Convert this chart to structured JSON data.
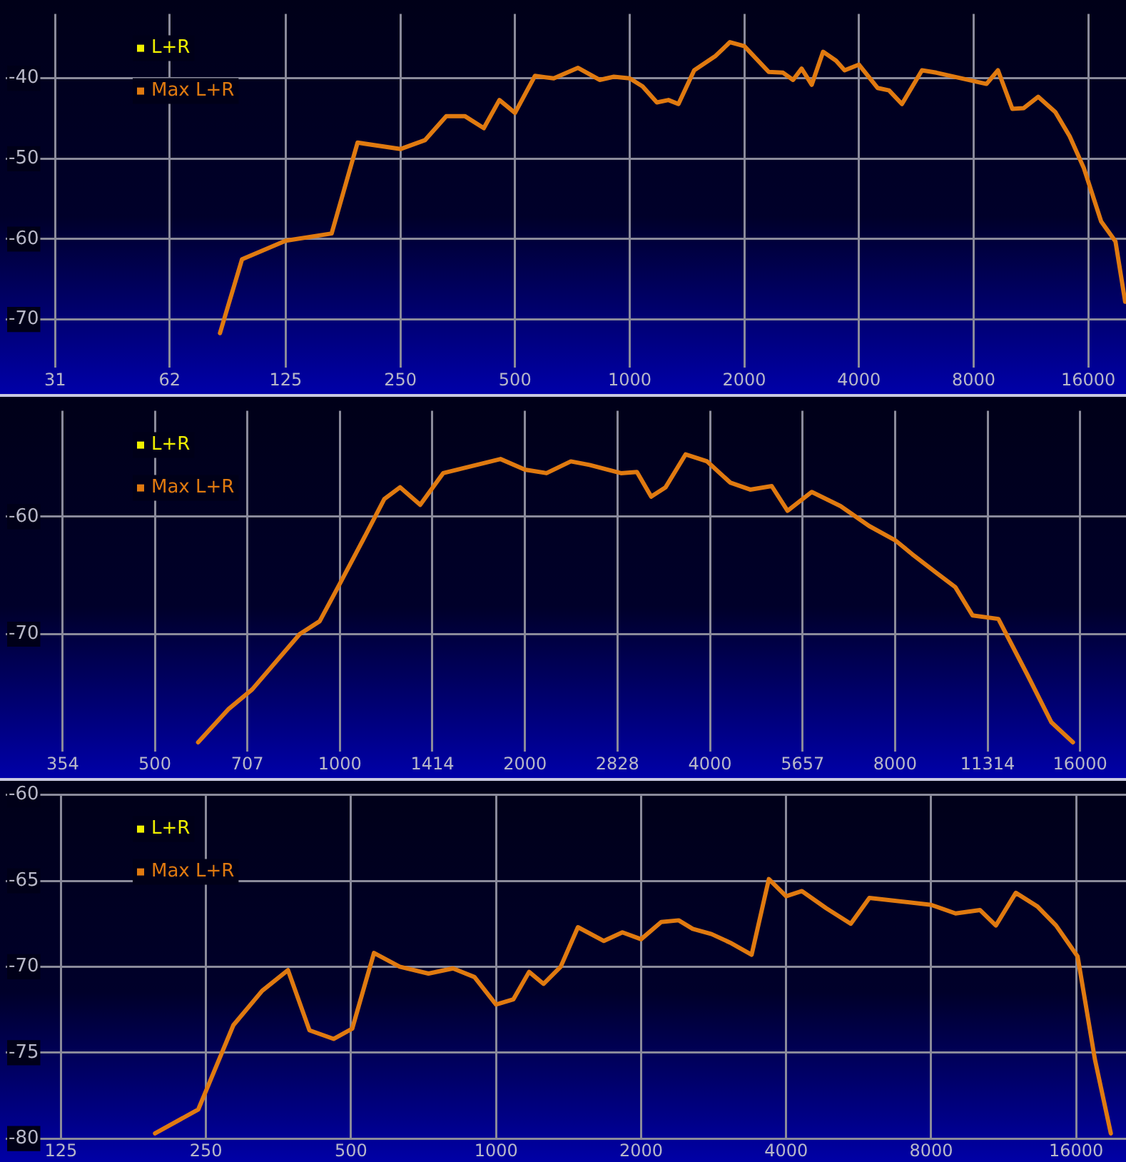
{
  "chart_data": [
    {
      "type": "line",
      "log": "x",
      "grid": true,
      "legend": "top left",
      "marker": "none",
      "line_style": "solid",
      "xlim": [
        23,
        20100
      ],
      "ylim": [
        -76,
        -32
      ],
      "xticks": [
        31,
        62,
        125,
        250,
        500,
        1000,
        2000,
        4000,
        8000,
        16000
      ],
      "yticks": [
        -40,
        -50,
        -60,
        -70
      ],
      "series": [
        {
          "name": "L+R",
          "color": "#f0f000"
        },
        {
          "name": "Max L+R",
          "color": "#e07a10",
          "x": [
            84,
            96,
            125,
            165,
            193,
            250,
            290,
            330,
            369,
            414,
            455,
            500,
            564,
            632,
            732,
            834,
            909,
            1000,
            1081,
            1179,
            1264,
            1343,
            1477,
            1682,
            1834,
            2000,
            2318,
            2527,
            2685,
            2828,
            3006,
            3220,
            3482,
            3668,
            4000,
            4476,
            4797,
            5187,
            5856,
            6386,
            8647,
            9269,
            10109,
            10835,
            11818,
            13110,
            14294,
            15588,
            17296,
            18862,
            20000
          ],
          "values": [
            -71.7,
            -62.5,
            -60.2,
            -59.3,
            -48,
            -48.8,
            -47.7,
            -44.7,
            -44.7,
            -46.2,
            -42.7,
            -44.3,
            -39.7,
            -40,
            -38.7,
            -40.2,
            -39.8,
            -40,
            -41,
            -43,
            -42.7,
            -43.2,
            -39,
            -37.2,
            -35.5,
            -36,
            -39.2,
            -39.3,
            -40.2,
            -38.8,
            -40.8,
            -36.7,
            -37.8,
            -39,
            -38.3,
            -41.2,
            -41.5,
            -43.2,
            -39,
            -39.3,
            -40.7,
            -39,
            -43.8,
            -43.7,
            -42.3,
            -44.2,
            -47.2,
            -51.2,
            -57.8,
            -60.3,
            -67.8
          ]
        }
      ]
    },
    {
      "type": "line",
      "log": "x",
      "grid": true,
      "legend": "top left",
      "marker": "none",
      "line_style": "solid",
      "xlim": [
        286,
        19000
      ],
      "ylim": [
        -80,
        -51
      ],
      "xticks": [
        354,
        500,
        707,
        1000,
        1414,
        2000,
        2828,
        4000,
        5657,
        8000,
        11314,
        16000
      ],
      "yticks": [
        -60,
        -70
      ],
      "series": [
        {
          "name": "L+R",
          "color": "#f0f000"
        },
        {
          "name": "Max L+R",
          "color": "#e07a10",
          "x": [
            588,
            658,
            720,
            860,
            927,
            1000,
            1090,
            1181,
            1253,
            1351,
            1472,
            1825,
            2000,
            2168,
            2375,
            2547,
            2866,
            3042,
            3209,
            3387,
            3651,
            3957,
            4314,
            4650,
            5040,
            5348,
            5856,
            6521,
            7262,
            8000,
            8533,
            9350,
            10026,
            10693,
            11780,
            13116,
            14370,
            15575
          ],
          "values": [
            -79.2,
            -76.4,
            -74.7,
            -70,
            -68.9,
            -65.7,
            -62,
            -58.5,
            -57.5,
            -59,
            -56.3,
            -55.1,
            -56,
            -56.3,
            -55.3,
            -55.6,
            -56.3,
            -56.2,
            -58.3,
            -57.5,
            -54.7,
            -55.3,
            -57.1,
            -57.7,
            -57.4,
            -59.5,
            -57.9,
            -59.1,
            -60.8,
            -62,
            -63.2,
            -64.8,
            -66,
            -68.4,
            -68.7,
            -73.4,
            -77.5,
            -79.2
          ]
        }
      ]
    },
    {
      "type": "line",
      "log": "x",
      "grid": true,
      "legend": "top left",
      "marker": "none",
      "line_style": "solid",
      "xlim": [
        96,
        20300
      ],
      "ylim": [
        -80,
        -60
      ],
      "xticks": [
        125,
        250,
        500,
        1000,
        2000,
        4000,
        8000,
        16000
      ],
      "yticks": [
        -60,
        -65,
        -70,
        -75,
        -80
      ],
      "series": [
        {
          "name": "L+R",
          "color": "#f0f000"
        },
        {
          "name": "Max L+R",
          "color": "#e07a10",
          "x": [
            196,
            241,
            285,
            327,
            370,
            410,
            460,
            503,
            558,
            631,
            724,
            814,
            902,
            1000,
            1086,
            1171,
            1255,
            1362,
            1479,
            1674,
            1829,
            2000,
            2202,
            2393,
            2560,
            2800,
            3061,
            3392,
            3683,
            4000,
            4314,
            4846,
            5448,
            5955,
            8000,
            8990,
            10100,
            10900,
            11990,
            13300,
            14530,
            16110,
            17500,
            18880
          ],
          "values": [
            -79.7,
            -78.3,
            -73.4,
            -71.4,
            -70.2,
            -73.7,
            -74.2,
            -73.6,
            -69.2,
            -70,
            -70.4,
            -70.1,
            -70.6,
            -72.2,
            -71.9,
            -70.3,
            -71,
            -70,
            -67.7,
            -68.5,
            -68,
            -68.4,
            -67.4,
            -67.3,
            -67.8,
            -68.1,
            -68.6,
            -69.3,
            -64.9,
            -65.9,
            -65.6,
            -66.6,
            -67.5,
            -66,
            -66.4,
            -66.9,
            -66.7,
            -67.6,
            -65.7,
            -66.5,
            -67.6,
            -69.4,
            -75.4,
            -79.7
          ]
        }
      ]
    }
  ]
}
